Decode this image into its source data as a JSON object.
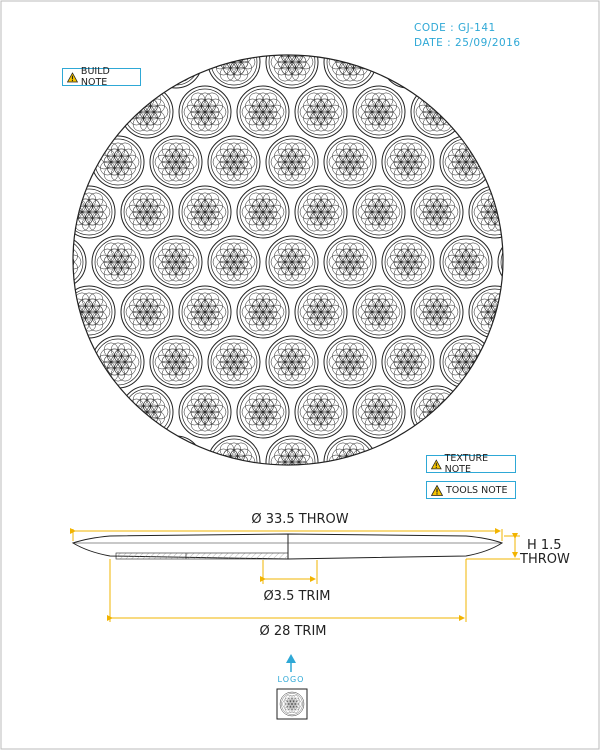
{
  "header": {
    "code": "CODE : GJ-141",
    "date": "DATE : 25/09/2016"
  },
  "notes": {
    "build": "BUILD NOTE",
    "texture": "TEXTURE NOTE",
    "tools": "TOOLS NOTE"
  },
  "dimensions": {
    "throw_diameter": "Ø 33.5 THROW",
    "height": "H 1.5",
    "height_suffix": "THROW",
    "foot_diameter": "Ø3.5 TRIM",
    "trim_diameter": "Ø 28 TRIM"
  },
  "logo": {
    "label": "LOGO"
  },
  "colors": {
    "accent": "#2ea8d6",
    "dimension": "#f2b400",
    "line": "#222222",
    "warning": "#f5c400"
  },
  "icons": {
    "warning": "warning-triangle-icon",
    "arrow": "arrow-up-icon",
    "logo": "flower-of-life-icon"
  }
}
